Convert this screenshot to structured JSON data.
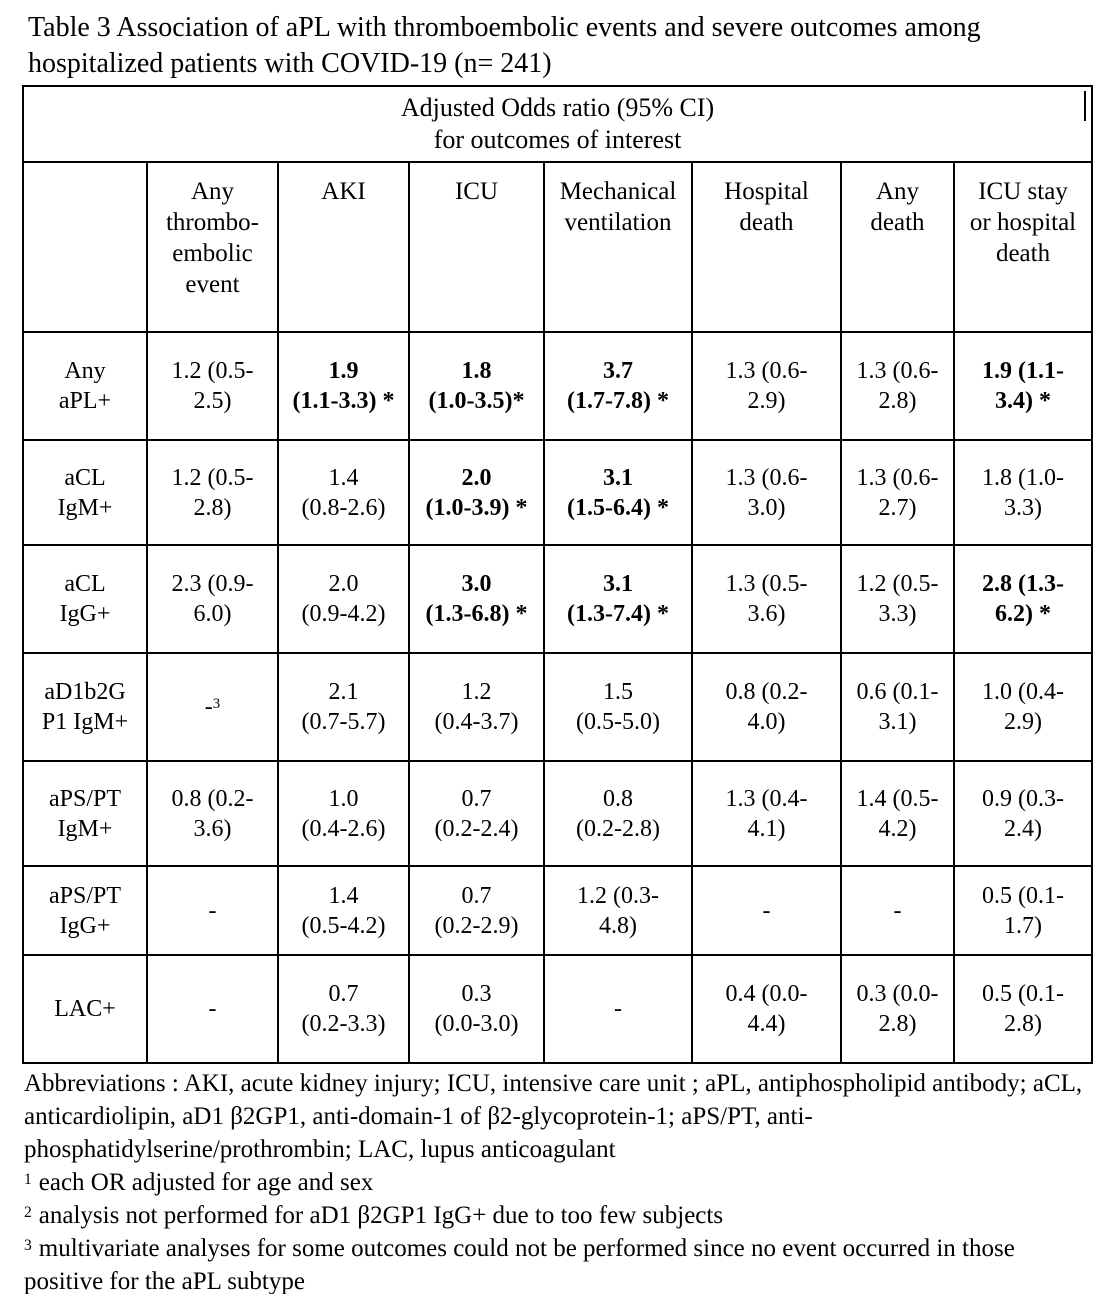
{
  "caption": "Table 3 Association of aPL with thromboembolic events and severe outcomes among\nhospitalized patients with COVID-19 (n= 241)",
  "colors": {
    "text": "#000000",
    "border": "#000000",
    "background": "#ffffff"
  },
  "table": {
    "spanning_header": "Adjusted Odds ratio (95% CI)\nfor outcomes of interest",
    "columns": [
      "",
      "Any\nthrombo-\nembolic\nevent",
      "AKI",
      "ICU",
      "Mechanical\nventilation",
      "Hospital\ndeath",
      "Any\ndeath",
      "ICU stay\nor hospital\ndeath"
    ],
    "rows": [
      {
        "label": "Any\naPL+",
        "cells": [
          {
            "t": "1.2 (0.5-\n2.5)",
            "b": false
          },
          {
            "t": "1.9\n(1.1-3.3) *",
            "b": true
          },
          {
            "t": "1.8\n(1.0-3.5)*",
            "b": true
          },
          {
            "t": "3.7\n(1.7-7.8) *",
            "b": true
          },
          {
            "t": "1.3 (0.6-\n2.9)",
            "b": false
          },
          {
            "t": "1.3 (0.6-\n2.8)",
            "b": false
          },
          {
            "t": "1.9 (1.1-\n3.4) *",
            "b": true
          }
        ]
      },
      {
        "label": "aCL\nIgM+",
        "cells": [
          {
            "t": "1.2 (0.5-\n2.8)",
            "b": false
          },
          {
            "t": "1.4\n(0.8-2.6)",
            "b": false
          },
          {
            "t": "2.0\n(1.0-3.9) *",
            "b": true
          },
          {
            "t": "3.1\n(1.5-6.4) *",
            "b": true
          },
          {
            "t": "1.3 (0.6-\n3.0)",
            "b": false
          },
          {
            "t": "1.3 (0.6-\n2.7)",
            "b": false
          },
          {
            "t": "1.8 (1.0-\n3.3)",
            "b": false
          }
        ]
      },
      {
        "label": "aCL\nIgG+",
        "cells": [
          {
            "t": "2.3 (0.9-\n6.0)",
            "b": false
          },
          {
            "t": "2.0\n(0.9-4.2)",
            "b": false
          },
          {
            "t": "3.0\n(1.3-6.8) *",
            "b": true
          },
          {
            "t": "3.1\n(1.3-7.4) *",
            "b": true
          },
          {
            "t": "1.3 (0.5-\n3.6)",
            "b": false
          },
          {
            "t": "1.2 (0.5-\n3.3)",
            "b": false
          },
          {
            "t": "2.8 (1.3-\n6.2) *",
            "b": true
          }
        ]
      },
      {
        "label": "aD1b2G\nP1 IgM+",
        "cells": [
          {
            "t": "-",
            "sup": "3",
            "b": false
          },
          {
            "t": "2.1\n(0.7-5.7)",
            "b": false
          },
          {
            "t": "1.2\n(0.4-3.7)",
            "b": false
          },
          {
            "t": "1.5\n(0.5-5.0)",
            "b": false
          },
          {
            "t": "0.8 (0.2-\n4.0)",
            "b": false
          },
          {
            "t": "0.6 (0.1-\n3.1)",
            "b": false
          },
          {
            "t": "1.0 (0.4-\n2.9)",
            "b": false
          }
        ]
      },
      {
        "label": "aPS/PT\nIgM+",
        "cells": [
          {
            "t": "0.8 (0.2-\n3.6)",
            "b": false
          },
          {
            "t": "1.0\n(0.4-2.6)",
            "b": false
          },
          {
            "t": "0.7\n(0.2-2.4)",
            "b": false
          },
          {
            "t": "0.8\n(0.2-2.8)",
            "b": false
          },
          {
            "t": "1.3 (0.4-\n4.1)",
            "b": false
          },
          {
            "t": "1.4 (0.5-\n4.2)",
            "b": false
          },
          {
            "t": "0.9 (0.3-\n2.4)",
            "b": false
          }
        ]
      },
      {
        "label": "aPS/PT\nIgG+",
        "cells": [
          {
            "t": "-",
            "b": false
          },
          {
            "t": "1.4\n(0.5-4.2)",
            "b": false
          },
          {
            "t": "0.7\n(0.2-2.9)",
            "b": false
          },
          {
            "t": "1.2 (0.3-\n4.8)",
            "b": false
          },
          {
            "t": "-",
            "b": false
          },
          {
            "t": "-",
            "b": false
          },
          {
            "t": "0.5 (0.1-\n1.7)",
            "b": false
          }
        ]
      },
      {
        "label": "LAC+",
        "cells": [
          {
            "t": "-",
            "b": false
          },
          {
            "t": "0.7\n(0.2-3.3)",
            "b": false
          },
          {
            "t": "0.3\n(0.0-3.0)",
            "b": false
          },
          {
            "t": "-",
            "b": false
          },
          {
            "t": "0.4 (0.0-\n4.4)",
            "b": false
          },
          {
            "t": "0.3 (0.0-\n2.8)",
            "b": false
          },
          {
            "t": "0.5 (0.1-\n2.8)",
            "b": false
          }
        ]
      }
    ]
  },
  "notes": {
    "abbreviations": "Abbreviations : AKI, acute kidney injury; ICU, intensive care unit ; aPL, antiphospholipid antibody; aCL, anticardiolipin, aD1 β2GP1, anti-domain-1 of β2-glycoprotein-1; aPS/PT, anti-phosphatidylserine/prothrombin; LAC, lupus anticoagulant",
    "footnotes": [
      {
        "marker": "1",
        "text": "each OR adjusted for age and sex"
      },
      {
        "marker": "2",
        "text": "analysis not performed for aD1 β2GP1 IgG+ due to too few subjects"
      },
      {
        "marker": "3",
        "text": "multivariate analyses for some outcomes could not be performed since no event occurred in those positive for the aPL subtype"
      }
    ]
  }
}
